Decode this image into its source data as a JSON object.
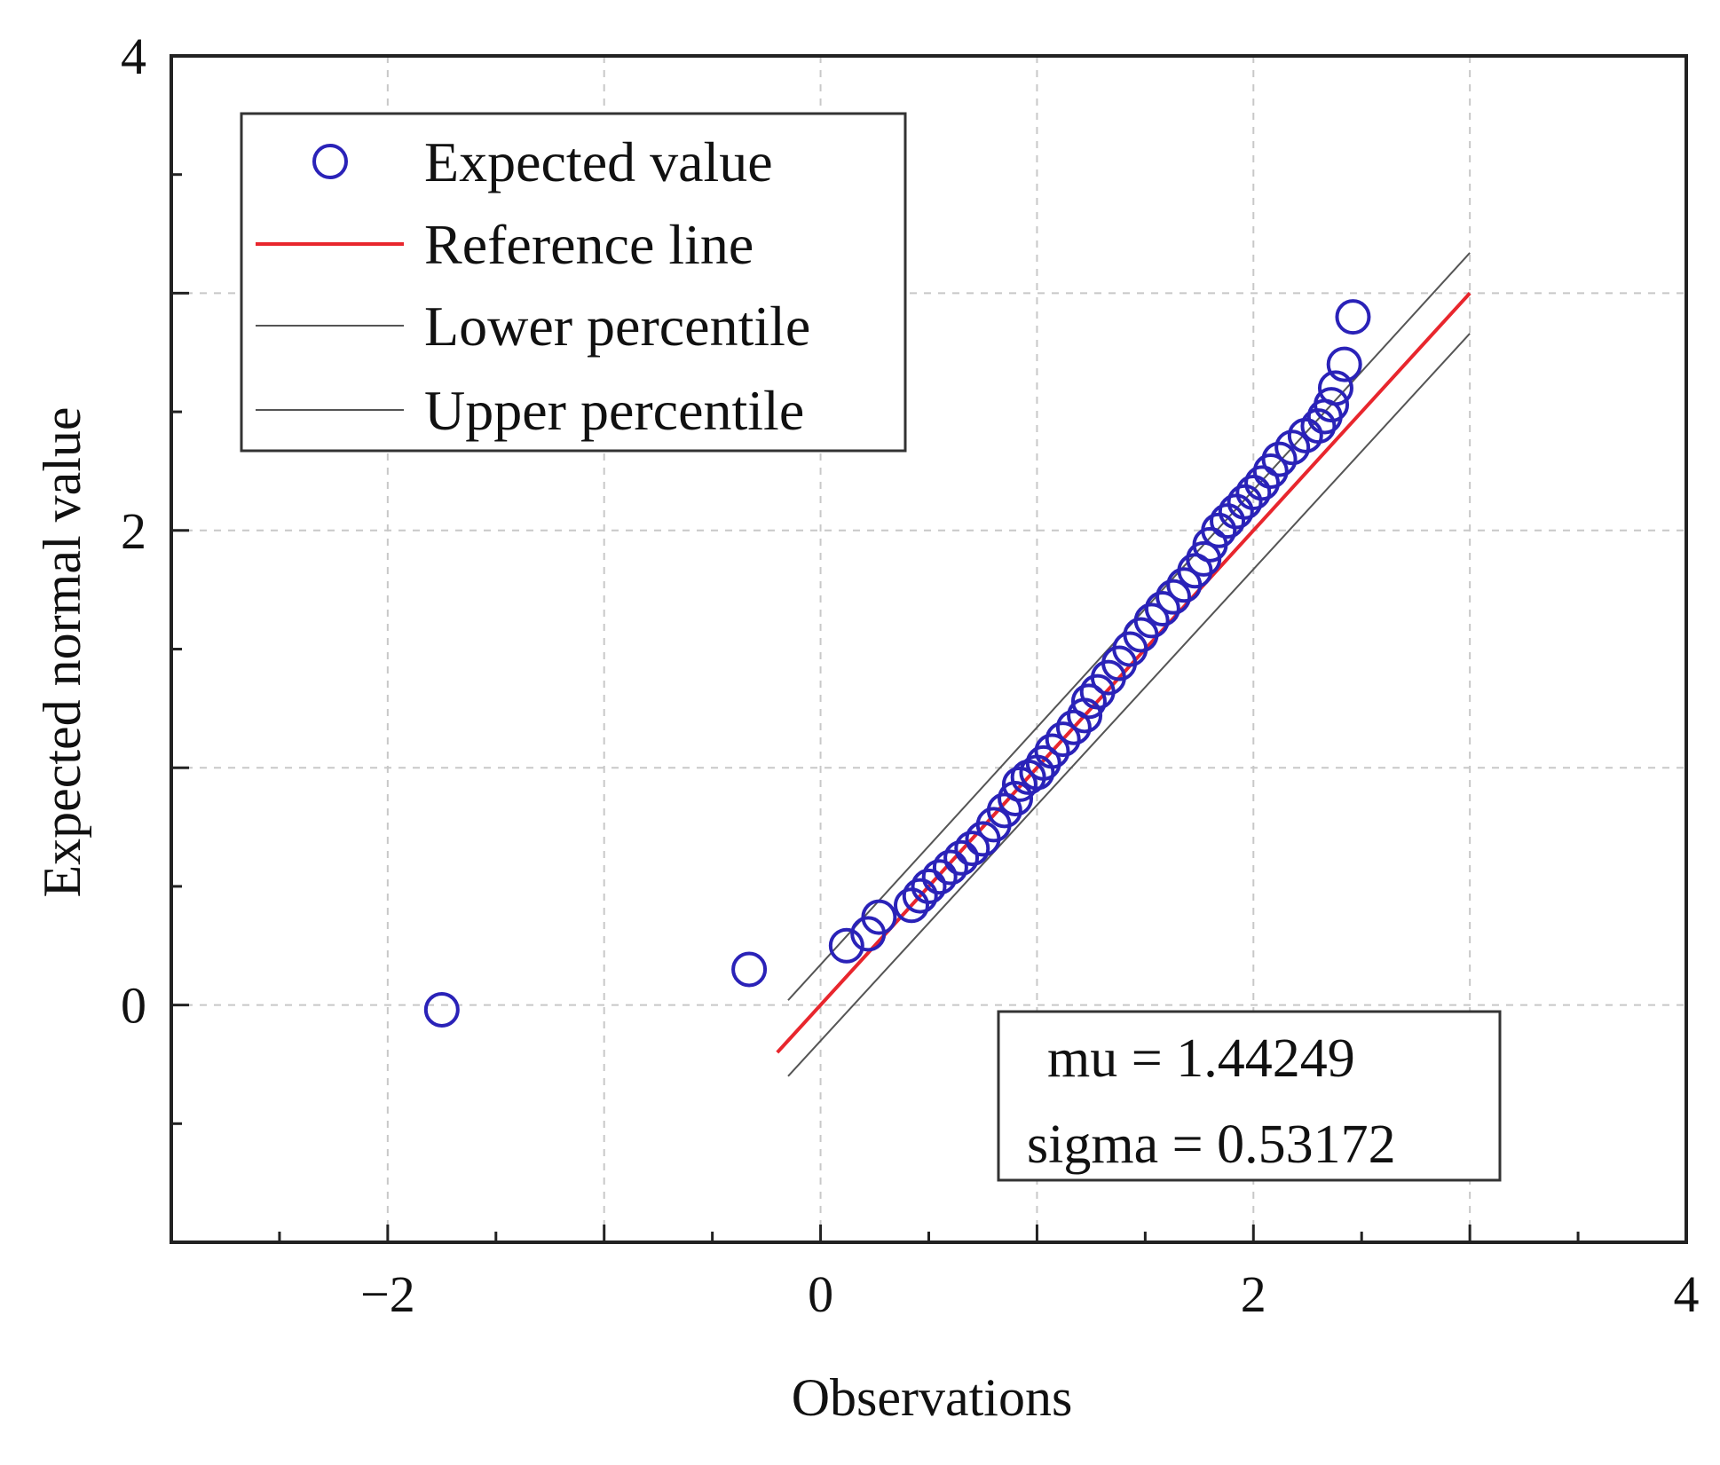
{
  "chart_data": {
    "type": "scatter",
    "title": "",
    "xlabel": "Observations",
    "ylabel": "Expected normal value",
    "xlim": [
      -3,
      4
    ],
    "ylim": [
      -1,
      4
    ],
    "xticks": [
      -2,
      0,
      2,
      4
    ],
    "xtick_labels": [
      "−2",
      "0",
      "2",
      "4"
    ],
    "yticks": [
      0,
      2,
      4
    ],
    "ytick_labels": [
      "0",
      "2",
      "4"
    ],
    "grid": true,
    "legend_position": "top-left",
    "legend": [
      {
        "label": "Expected value",
        "kind": "marker"
      },
      {
        "label": "Reference line",
        "kind": "line"
      },
      {
        "label": "Lower percentile",
        "kind": "line"
      },
      {
        "label": "Upper percentile",
        "kind": "line"
      }
    ],
    "annotation": {
      "mu_text": "mu = 1.44249",
      "sigma_text": "sigma = 0.53172",
      "position": "bottom-right"
    },
    "colors": {
      "points": "#2a22b8",
      "reference": "#e8262d",
      "percentile": "#555555",
      "grid": "#c8c8c8",
      "axes": "#222222"
    },
    "series": [
      {
        "name": "Expected value",
        "kind": "scatter",
        "x": [
          -1.75,
          -0.33,
          0.12,
          0.22,
          0.27,
          0.42,
          0.46,
          0.5,
          0.55,
          0.6,
          0.65,
          0.7,
          0.75,
          0.8,
          0.85,
          0.9,
          0.92,
          0.96,
          1.0,
          1.03,
          1.07,
          1.12,
          1.17,
          1.22,
          1.24,
          1.28,
          1.33,
          1.38,
          1.43,
          1.48,
          1.53,
          1.58,
          1.63,
          1.68,
          1.73,
          1.77,
          1.8,
          1.84,
          1.88,
          1.92,
          1.96,
          2.0,
          2.04,
          2.08,
          2.12,
          2.18,
          2.24,
          2.3,
          2.33,
          2.36,
          2.38,
          2.42,
          2.46
        ],
        "y": [
          -0.02,
          0.15,
          0.25,
          0.3,
          0.37,
          0.42,
          0.46,
          0.5,
          0.54,
          0.58,
          0.62,
          0.66,
          0.7,
          0.76,
          0.82,
          0.87,
          0.93,
          0.96,
          0.98,
          1.02,
          1.07,
          1.12,
          1.17,
          1.22,
          1.28,
          1.32,
          1.38,
          1.44,
          1.5,
          1.56,
          1.62,
          1.67,
          1.72,
          1.77,
          1.83,
          1.88,
          1.94,
          2.0,
          2.04,
          2.08,
          2.12,
          2.16,
          2.2,
          2.25,
          2.3,
          2.35,
          2.4,
          2.44,
          2.48,
          2.53,
          2.6,
          2.7,
          2.9
        ]
      },
      {
        "name": "Reference line",
        "kind": "line",
        "x": [
          -0.2,
          3.0
        ],
        "y": [
          -0.2,
          3.0
        ]
      },
      {
        "name": "Lower percentile",
        "kind": "line",
        "x": [
          -0.15,
          3.0
        ],
        "y": [
          0.02,
          3.17
        ]
      },
      {
        "name": "Upper percentile",
        "kind": "line",
        "x": [
          -0.15,
          3.0
        ],
        "y": [
          -0.3,
          2.83
        ]
      }
    ]
  }
}
